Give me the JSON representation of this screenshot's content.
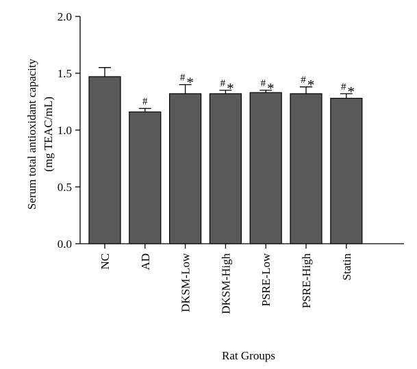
{
  "chart_data": {
    "type": "bar",
    "title": "",
    "xlabel": "Rat Groups",
    "ylabel_lines": [
      "Serum total antioxidant capacity",
      "(mg TEAC/mL)"
    ],
    "ylim": [
      0,
      2.0
    ],
    "yticks": [
      "0.0",
      "0.5",
      "1.0",
      "1.5",
      "2.0"
    ],
    "ytick_values": [
      0,
      0.5,
      1.0,
      1.5,
      2.0
    ],
    "categories": [
      "NC",
      "AD",
      "DKSM-Low",
      "DKSM-High",
      "PSRE-Low",
      "PSRE-High",
      "Statin"
    ],
    "values": [
      1.47,
      1.16,
      1.32,
      1.32,
      1.33,
      1.32,
      1.28
    ],
    "errors": [
      0.08,
      0.03,
      0.08,
      0.03,
      0.02,
      0.06,
      0.04
    ],
    "hash_marks": [
      "",
      "#",
      "#",
      "#",
      "#",
      "#",
      "#"
    ],
    "star_marks": [
      "",
      "",
      "*",
      "*",
      "*",
      "*",
      "*"
    ],
    "bar_color": "#595959",
    "grid": false,
    "legend": "none"
  }
}
